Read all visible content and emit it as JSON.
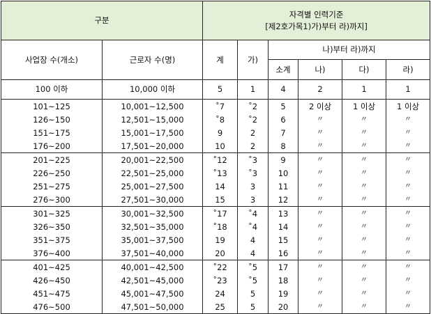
{
  "header": {
    "category": "구분",
    "qual_title": "자격별 인력기준",
    "qual_sub": "[제2호가목1)가)부터 라)까지]",
    "workplaces": "사업장 수(개소)",
    "workers": "근로자 수(명)",
    "total": "계",
    "ga": "가)",
    "na_to_ra": "나)부터 라)까지",
    "subtotal": "소계",
    "na": "나)",
    "da": "다)",
    "ra": "라)"
  },
  "first_row": {
    "workplaces": "100 이하",
    "workers": "10,000 이하",
    "total": "5",
    "ga": "1",
    "subtotal": "4",
    "na": "2",
    "da": "1",
    "ra": "1"
  },
  "groups": [
    [
      {
        "workplaces": "101~125",
        "workers": "10,001~12,500",
        "total": "˚7",
        "ga": "˚2",
        "subtotal": "5",
        "na": "2 이상",
        "da": "1 이상",
        "ra": "1 이상"
      },
      {
        "workplaces": "126~150",
        "workers": "12,501~15,000",
        "total": "˚8",
        "ga": "˚2",
        "subtotal": "6",
        "na": "〃",
        "da": "〃",
        "ra": "〃"
      },
      {
        "workplaces": "151~175",
        "workers": "15,001~17,500",
        "total": "9",
        "ga": "2",
        "subtotal": "7",
        "na": "〃",
        "da": "〃",
        "ra": "〃"
      },
      {
        "workplaces": "176~200",
        "workers": "17,501~20,000",
        "total": "10",
        "ga": "2",
        "subtotal": "8",
        "na": "〃",
        "da": "〃",
        "ra": "〃"
      }
    ],
    [
      {
        "workplaces": "201~225",
        "workers": "20,001~22,500",
        "total": "˚12",
        "ga": "˚3",
        "subtotal": "9",
        "na": "〃",
        "da": "〃",
        "ra": "〃"
      },
      {
        "workplaces": "226~250",
        "workers": "22,501~25,000",
        "total": "˚13",
        "ga": "˚3",
        "subtotal": "10",
        "na": "〃",
        "da": "〃",
        "ra": "〃"
      },
      {
        "workplaces": "251~275",
        "workers": "25,001~27,500",
        "total": "14",
        "ga": "3",
        "subtotal": "11",
        "na": "〃",
        "da": "〃",
        "ra": "〃"
      },
      {
        "workplaces": "276~300",
        "workers": "27,501~30,000",
        "total": "15",
        "ga": "3",
        "subtotal": "12",
        "na": "〃",
        "da": "〃",
        "ra": "〃"
      }
    ],
    [
      {
        "workplaces": "301~325",
        "workers": "30,001~32,500",
        "total": "˚17",
        "ga": "˚4",
        "subtotal": "13",
        "na": "〃",
        "da": "〃",
        "ra": "〃"
      },
      {
        "workplaces": "326~350",
        "workers": "32,501~35,000",
        "total": "˚18",
        "ga": "˚4",
        "subtotal": "14",
        "na": "〃",
        "da": "〃",
        "ra": "〃"
      },
      {
        "workplaces": "351~375",
        "workers": "35,001~37,500",
        "total": "19",
        "ga": "4",
        "subtotal": "15",
        "na": "〃",
        "da": "〃",
        "ra": "〃"
      },
      {
        "workplaces": "376~400",
        "workers": "37,501~40,000",
        "total": "20",
        "ga": "4",
        "subtotal": "16",
        "na": "〃",
        "da": "〃",
        "ra": "〃"
      }
    ],
    [
      {
        "workplaces": "401~425",
        "workers": "40,001~42,500",
        "total": "˚22",
        "ga": "˚5",
        "subtotal": "17",
        "na": "〃",
        "da": "〃",
        "ra": "〃"
      },
      {
        "workplaces": "426~450",
        "workers": "42,501~45,000",
        "total": "˚23",
        "ga": "˚5",
        "subtotal": "18",
        "na": "〃",
        "da": "〃",
        "ra": "〃"
      },
      {
        "workplaces": "451~475",
        "workers": "45,001~47,500",
        "total": "24",
        "ga": "5",
        "subtotal": "19",
        "na": "〃",
        "da": "〃",
        "ra": "〃"
      },
      {
        "workplaces": "476~500",
        "workers": "47,501~50,000",
        "total": "25",
        "ga": "5",
        "subtotal": "20",
        "na": "〃",
        "da": "〃",
        "ra": "〃"
      }
    ]
  ]
}
